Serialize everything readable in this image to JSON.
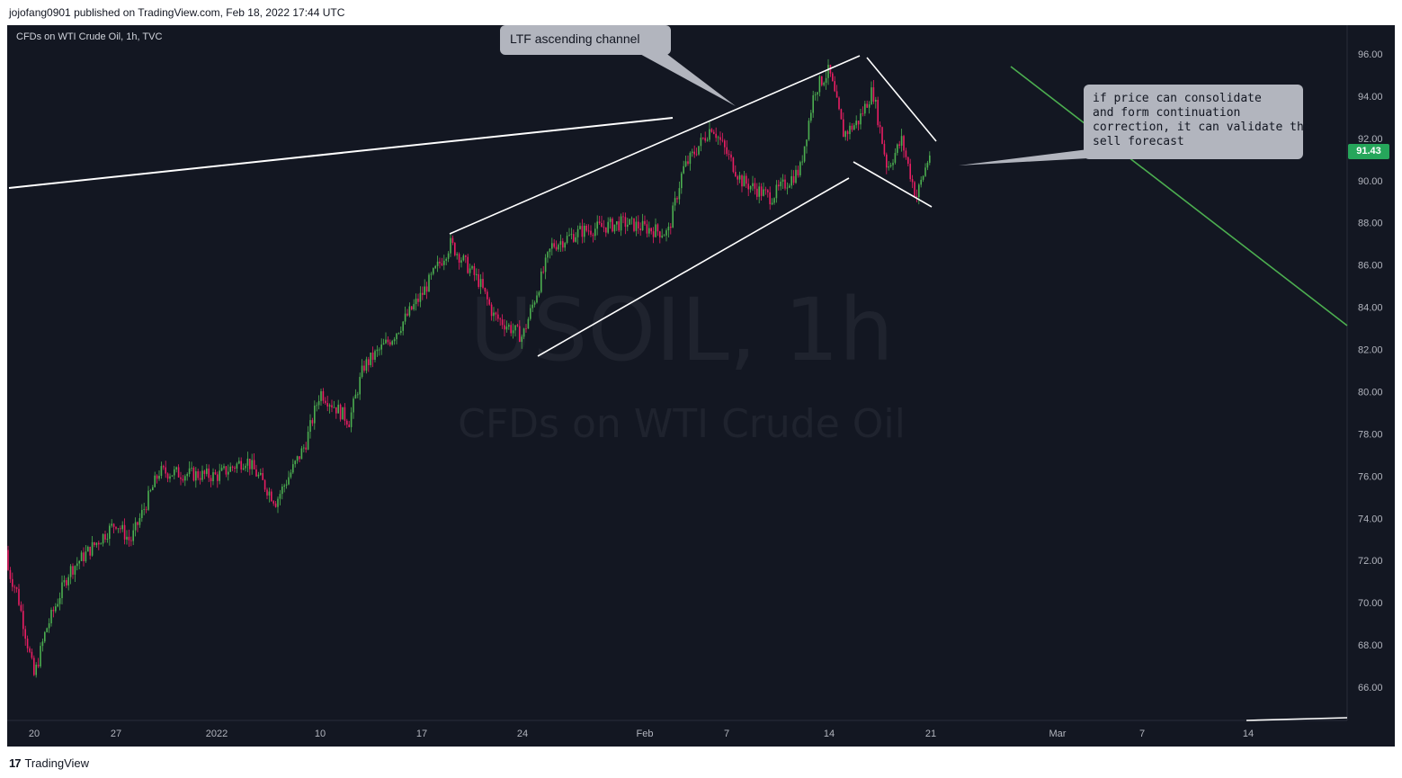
{
  "header": {
    "publisher_line": "jojofang0901 published on TradingView.com, Feb 18, 2022 17:44 UTC"
  },
  "footer": {
    "brand_mark": "17",
    "brand_name": "TradingView"
  },
  "colors": {
    "background": "#131722",
    "up_candle": "#4caf50",
    "down_candle": "#e91e63",
    "trendline": "#ffffff",
    "forecast_line": "#4caf50",
    "note_bg": "#b2b5be",
    "price_badge": "#26a65b"
  },
  "chart_data": {
    "type": "candlestick",
    "symbol_legend": "CFDs on WTI Crude Oil, 1h, TVC",
    "watermark_symbol": "USOIL, 1h",
    "watermark_name": "CFDs on WTI Crude Oil",
    "last_price": "91.43",
    "y_ticks": [
      "96.00",
      "94.00",
      "92.00",
      "90.00",
      "88.00",
      "86.00",
      "84.00",
      "82.00",
      "80.00",
      "78.00",
      "76.00",
      "74.00",
      "72.00",
      "70.00",
      "68.00",
      "66.00"
    ],
    "ylim": [
      64.5,
      97.5
    ],
    "x_ticks": [
      "20",
      "27",
      "2022",
      "10",
      "17",
      "24",
      "Feb",
      "7",
      "14",
      "21",
      "Mar",
      "7",
      "14"
    ],
    "price_path": [
      {
        "d": "Dec 16",
        "p": 72.5
      },
      {
        "d": "Dec 18",
        "p": 70.5
      },
      {
        "d": "Dec 20",
        "p": 66.5
      },
      {
        "d": "Dec 21",
        "p": 68.7
      },
      {
        "d": "Dec 23",
        "p": 71.5
      },
      {
        "d": "Dec 27",
        "p": 73.8
      },
      {
        "d": "Dec 28",
        "p": 72.9
      },
      {
        "d": "Dec 30",
        "p": 76.2
      },
      {
        "d": "Jan 3",
        "p": 76.0
      },
      {
        "d": "Jan 5",
        "p": 76.8
      },
      {
        "d": "Jan 7",
        "p": 74.8
      },
      {
        "d": "Jan 9",
        "p": 77.5
      },
      {
        "d": "Jan 10",
        "p": 80.0
      },
      {
        "d": "Jan 12",
        "p": 78.6
      },
      {
        "d": "Jan 13",
        "p": 81.2
      },
      {
        "d": "Jan 15",
        "p": 82.6
      },
      {
        "d": "Jan 17",
        "p": 84.6
      },
      {
        "d": "Jan 19",
        "p": 87.0
      },
      {
        "d": "Jan 21",
        "p": 85.2
      },
      {
        "d": "Jan 22",
        "p": 83.6
      },
      {
        "d": "Jan 24",
        "p": 82.6
      },
      {
        "d": "Jan 26",
        "p": 86.9
      },
      {
        "d": "Jan 28",
        "p": 87.6
      },
      {
        "d": "Jan 31",
        "p": 88.0
      },
      {
        "d": "Feb 3",
        "p": 87.5
      },
      {
        "d": "Feb 4",
        "p": 90.5
      },
      {
        "d": "Feb 6",
        "p": 92.6
      },
      {
        "d": "Feb 8",
        "p": 90.0
      },
      {
        "d": "Feb 10",
        "p": 89.2
      },
      {
        "d": "Feb 12",
        "p": 90.5
      },
      {
        "d": "Feb 13",
        "p": 94.3
      },
      {
        "d": "Feb 14",
        "p": 95.2
      },
      {
        "d": "Feb 15",
        "p": 92.2
      },
      {
        "d": "Feb 16",
        "p": 92.8
      },
      {
        "d": "Feb 17",
        "p": 94.3
      },
      {
        "d": "Feb 18",
        "p": 90.6
      },
      {
        "d": "Feb 19",
        "p": 91.9
      },
      {
        "d": "Feb 20",
        "p": 89.2
      },
      {
        "d": "Feb 21",
        "p": 91.43
      }
    ],
    "drawings": {
      "channel_label": "LTF ascending channel",
      "forecast_note": [
        "if price can consolidate",
        "and form continuation",
        "correction, it can validate the",
        "sell forecast"
      ]
    }
  }
}
